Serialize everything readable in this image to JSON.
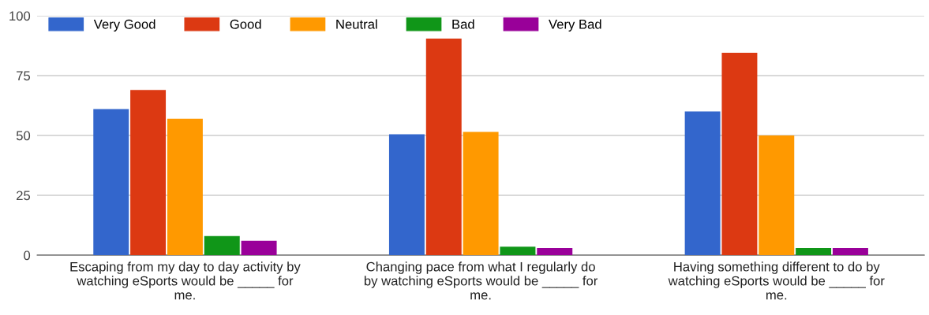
{
  "chart_data": {
    "type": "bar",
    "categories": [
      "Escaping from my day to day activity by\nwatching eSports would be _____ for\nme.",
      "Changing pace from what I regularly do\nby watching eSports would be _____ for\nme.",
      "Having something different to do by\nwatching eSports would be _____ for\nme."
    ],
    "series": [
      {
        "name": "Very Good",
        "color": "#3366cc",
        "values": [
          61,
          50.5,
          60
        ]
      },
      {
        "name": "Good",
        "color": "#dc3912",
        "values": [
          69,
          90.5,
          84.5
        ]
      },
      {
        "name": "Neutral",
        "color": "#ff9900",
        "values": [
          57,
          51.5,
          50
        ]
      },
      {
        "name": "Bad",
        "color": "#109618",
        "values": [
          8,
          3.5,
          3
        ]
      },
      {
        "name": "Very Bad",
        "color": "#990099",
        "values": [
          6,
          3,
          3
        ]
      }
    ],
    "ylim": [
      0,
      100
    ],
    "yticks": [
      0,
      25,
      50,
      75,
      100
    ],
    "grid": "y",
    "legend": "top left"
  }
}
